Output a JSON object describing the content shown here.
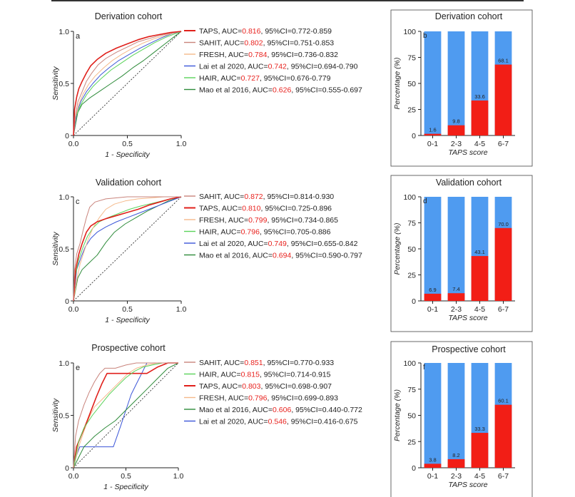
{
  "colors": {
    "auc_value": "#e8231f",
    "bar_top": "#4f9bf0",
    "bar_bottom": "#f21e16",
    "text": "#222222"
  },
  "chart_data": [
    {
      "type": "line",
      "panel": "a",
      "title": "Derivation cohort",
      "xlabel": "1 - Specificity",
      "ylabel": "Sensitivity",
      "xlim": [
        0,
        1
      ],
      "ylim": [
        0,
        1
      ],
      "xticks": [
        "0.0",
        "0.5",
        "1.0"
      ],
      "yticks": [
        "0",
        "0.5",
        "1.0"
      ],
      "legend_position": "right",
      "reference_line": true,
      "series": [
        {
          "name": "TAPS",
          "auc": "0.816",
          "ci": "0.772-0.859",
          "color": "#e0201b",
          "width": 1.6,
          "x": [
            0,
            0.01,
            0.03,
            0.05,
            0.08,
            0.12,
            0.16,
            0.22,
            0.3,
            0.4,
            0.5,
            0.6,
            0.7,
            0.8,
            0.9,
            1
          ],
          "y": [
            0,
            0.25,
            0.37,
            0.45,
            0.52,
            0.6,
            0.67,
            0.73,
            0.79,
            0.84,
            0.88,
            0.92,
            0.95,
            0.97,
            0.99,
            1
          ]
        },
        {
          "name": "SAHIT",
          "auc": "0.802",
          "ci": "0.751-0.853",
          "color": "#c9847c",
          "width": 1,
          "x": [
            0,
            0.02,
            0.04,
            0.08,
            0.12,
            0.17,
            0.23,
            0.3,
            0.4,
            0.5,
            0.6,
            0.7,
            0.8,
            0.9,
            1
          ],
          "y": [
            0,
            0.2,
            0.32,
            0.42,
            0.52,
            0.6,
            0.68,
            0.74,
            0.8,
            0.85,
            0.9,
            0.93,
            0.96,
            0.98,
            1
          ]
        },
        {
          "name": "FRESH",
          "auc": "0.784",
          "ci": "0.736-0.832",
          "color": "#f5b98a",
          "width": 1,
          "x": [
            0,
            0.02,
            0.05,
            0.09,
            0.14,
            0.2,
            0.28,
            0.36,
            0.45,
            0.55,
            0.65,
            0.75,
            0.85,
            0.95,
            1
          ],
          "y": [
            0,
            0.18,
            0.3,
            0.4,
            0.49,
            0.57,
            0.65,
            0.72,
            0.78,
            0.84,
            0.89,
            0.93,
            0.96,
            0.99,
            1
          ]
        },
        {
          "name": "Lai et al 2020",
          "auc": "0.742",
          "ci": "0.694-0.790",
          "color": "#3b56d8",
          "width": 1,
          "x": [
            0,
            0.03,
            0.07,
            0.12,
            0.18,
            0.25,
            0.33,
            0.42,
            0.52,
            0.62,
            0.72,
            0.82,
            0.92,
            1
          ],
          "y": [
            0,
            0.22,
            0.33,
            0.42,
            0.5,
            0.58,
            0.65,
            0.72,
            0.78,
            0.84,
            0.89,
            0.94,
            0.98,
            1
          ]
        },
        {
          "name": "HAIR",
          "auc": "0.727",
          "ci": "0.676-0.779",
          "color": "#5ad35a",
          "width": 1,
          "x": [
            0,
            0.03,
            0.07,
            0.12,
            0.18,
            0.26,
            0.35,
            0.45,
            0.55,
            0.65,
            0.75,
            0.85,
            0.95,
            1
          ],
          "y": [
            0,
            0.2,
            0.3,
            0.39,
            0.47,
            0.55,
            0.63,
            0.7,
            0.77,
            0.83,
            0.89,
            0.94,
            0.98,
            1
          ]
        },
        {
          "name": "Mao et al 2016",
          "auc": "0.626",
          "ci": "0.555-0.697",
          "color": "#2e8b3a",
          "width": 1,
          "x": [
            0,
            0.04,
            0.08,
            0.15,
            0.25,
            0.35,
            0.45,
            0.55,
            0.65,
            0.75,
            0.85,
            0.95,
            1
          ],
          "y": [
            0,
            0.22,
            0.3,
            0.36,
            0.43,
            0.5,
            0.57,
            0.65,
            0.72,
            0.8,
            0.88,
            0.96,
            1
          ]
        }
      ]
    },
    {
      "type": "bar",
      "panel": "b",
      "title": "Derivation cohort",
      "xlabel": "TAPS score",
      "ylabel": "Percentage (%)",
      "ylim": [
        0,
        100
      ],
      "yticks": [
        "0",
        "25",
        "50",
        "75",
        "100"
      ],
      "categories": [
        "0-1",
        "2-3",
        "4-5",
        "6-7"
      ],
      "values": [
        1.6,
        9.8,
        33.6,
        68.1
      ],
      "labels": [
        "1.6",
        "9.8",
        "33.6",
        "68.1"
      ]
    },
    {
      "type": "line",
      "panel": "c",
      "title": "Validation cohort",
      "xlabel": "1 - Specificity",
      "ylabel": "Sensitivity",
      "xlim": [
        0,
        1
      ],
      "ylim": [
        0,
        1
      ],
      "xticks": [
        "0.0",
        "0.5",
        "1.0"
      ],
      "yticks": [
        "0",
        "0.5",
        "1.0"
      ],
      "legend_position": "right",
      "reference_line": true,
      "series": [
        {
          "name": "SAHIT",
          "auc": "0.872",
          "ci": "0.814-0.930",
          "color": "#c9847c",
          "width": 1,
          "x": [
            0,
            0.01,
            0.03,
            0.06,
            0.09,
            0.12,
            0.15,
            0.2,
            0.3,
            0.5,
            0.7,
            1
          ],
          "y": [
            0,
            0.3,
            0.45,
            0.55,
            0.68,
            0.8,
            0.9,
            0.95,
            0.98,
            1,
            1,
            1
          ]
        },
        {
          "name": "TAPS",
          "auc": "0.810",
          "ci": "0.725-0.896",
          "color": "#e0201b",
          "width": 1.6,
          "x": [
            0,
            0.02,
            0.05,
            0.08,
            0.12,
            0.16,
            0.22,
            0.3,
            0.4,
            0.5,
            0.6,
            0.7,
            0.8,
            0.9,
            1
          ],
          "y": [
            0,
            0.3,
            0.45,
            0.55,
            0.66,
            0.72,
            0.76,
            0.79,
            0.82,
            0.85,
            0.88,
            0.92,
            0.95,
            0.98,
            1
          ]
        },
        {
          "name": "FRESH",
          "auc": "0.799",
          "ci": "0.734-0.865",
          "color": "#f5b98a",
          "width": 1,
          "x": [
            0,
            0.03,
            0.06,
            0.1,
            0.14,
            0.18,
            0.24,
            0.3,
            0.38,
            0.48,
            0.6,
            0.72,
            0.84,
            1
          ],
          "y": [
            0,
            0.2,
            0.35,
            0.48,
            0.6,
            0.7,
            0.8,
            0.88,
            0.93,
            0.96,
            0.98,
            0.99,
            1,
            1
          ]
        },
        {
          "name": "HAIR",
          "auc": "0.796",
          "ci": "0.705-0.886",
          "color": "#5ad35a",
          "width": 1,
          "x": [
            0,
            0.02,
            0.05,
            0.09,
            0.13,
            0.18,
            0.24,
            0.32,
            0.42,
            0.52,
            0.62,
            0.74,
            0.86,
            1
          ],
          "y": [
            0,
            0.25,
            0.4,
            0.52,
            0.62,
            0.7,
            0.76,
            0.8,
            0.84,
            0.88,
            0.91,
            0.94,
            0.97,
            1
          ]
        },
        {
          "name": "Lai et al 2020",
          "auc": "0.749",
          "ci": "0.655-0.842",
          "color": "#3b56d8",
          "width": 1,
          "x": [
            0,
            0.03,
            0.07,
            0.11,
            0.16,
            0.22,
            0.3,
            0.4,
            0.5,
            0.6,
            0.7,
            0.8,
            0.9,
            1
          ],
          "y": [
            0,
            0.3,
            0.42,
            0.52,
            0.6,
            0.66,
            0.71,
            0.76,
            0.8,
            0.84,
            0.88,
            0.92,
            0.96,
            1
          ]
        },
        {
          "name": "Mao et al 2016",
          "auc": "0.694",
          "ci": "0.590-0.797",
          "color": "#2e8b3a",
          "width": 1,
          "x": [
            0,
            0.04,
            0.08,
            0.14,
            0.22,
            0.3,
            0.38,
            0.48,
            0.58,
            0.68,
            0.78,
            0.88,
            1
          ],
          "y": [
            0,
            0.22,
            0.3,
            0.36,
            0.44,
            0.56,
            0.66,
            0.74,
            0.8,
            0.86,
            0.91,
            0.96,
            1
          ]
        }
      ]
    },
    {
      "type": "bar",
      "panel": "d",
      "title": "Validation cohort",
      "xlabel": "TAPS score",
      "ylabel": "Percentage (%)",
      "ylim": [
        0,
        100
      ],
      "yticks": [
        "0",
        "25",
        "50",
        "75",
        "100"
      ],
      "categories": [
        "0-1",
        "2-3",
        "4-5",
        "6-7"
      ],
      "values": [
        6.9,
        7.4,
        43.1,
        70.0
      ],
      "labels": [
        "6.9",
        "7.4",
        "43.1",
        "70.0"
      ]
    },
    {
      "type": "line",
      "panel": "e",
      "title": "Prospective cohort",
      "xlabel": "1 - Specificity",
      "ylabel": "Sensitivity",
      "xlim": [
        0,
        1
      ],
      "ylim": [
        0,
        1
      ],
      "xticks": [
        "0.0",
        "0.5",
        "1.0"
      ],
      "yticks": [
        "0",
        "0.5",
        "1.0"
      ],
      "legend_position": "right",
      "reference_line": true,
      "series": [
        {
          "name": "SAHIT",
          "auc": "0.851",
          "ci": "0.770-0.933",
          "color": "#c9847c",
          "width": 1,
          "x": [
            0,
            0.02,
            0.05,
            0.1,
            0.15,
            0.2,
            0.25,
            0.3,
            0.4,
            0.5,
            0.6,
            0.7,
            1
          ],
          "y": [
            0,
            0.3,
            0.45,
            0.6,
            0.72,
            0.82,
            0.9,
            0.95,
            0.95,
            0.98,
            1,
            1,
            1
          ]
        },
        {
          "name": "HAIR",
          "auc": "0.815",
          "ci": "0.714-0.915",
          "color": "#5ad35a",
          "width": 1,
          "x": [
            0,
            0.05,
            0.1,
            0.18,
            0.26,
            0.34,
            0.42,
            0.5,
            0.58,
            0.66,
            0.75,
            0.85,
            1
          ],
          "y": [
            0,
            0.25,
            0.38,
            0.5,
            0.6,
            0.7,
            0.78,
            0.86,
            0.92,
            0.96,
            0.98,
            1,
            1
          ]
        },
        {
          "name": "TAPS",
          "auc": "0.803",
          "ci": "0.698-0.907",
          "color": "#e0201b",
          "width": 1.6,
          "x": [
            0,
            0.03,
            0.07,
            0.12,
            0.17,
            0.22,
            0.27,
            0.32,
            0.5,
            0.7,
            0.8,
            0.9,
            1
          ],
          "y": [
            0,
            0.2,
            0.3,
            0.42,
            0.55,
            0.68,
            0.8,
            0.9,
            0.9,
            0.9,
            0.96,
            1,
            1
          ]
        },
        {
          "name": "FRESH",
          "auc": "0.796",
          "ci": "0.699-0.893",
          "color": "#f5b98a",
          "width": 1,
          "x": [
            0,
            0.05,
            0.1,
            0.15,
            0.2,
            0.28,
            0.36,
            0.44,
            0.52,
            0.6,
            0.7,
            0.8,
            1
          ],
          "y": [
            0,
            0.2,
            0.35,
            0.48,
            0.58,
            0.66,
            0.74,
            0.82,
            0.9,
            0.95,
            0.98,
            1,
            1
          ]
        },
        {
          "name": "Mao et al 2016",
          "auc": "0.606",
          "ci": "0.440-0.772",
          "color": "#2e8b3a",
          "width": 1,
          "x": [
            0,
            0.1,
            0.2,
            0.3,
            0.4,
            0.5,
            0.6,
            0.7,
            0.8,
            0.9,
            1
          ],
          "y": [
            0,
            0.2,
            0.3,
            0.38,
            0.45,
            0.55,
            0.65,
            0.75,
            0.85,
            0.95,
            1
          ]
        },
        {
          "name": "Lai et al 2020",
          "auc": "0.546",
          "ci": "0.416-0.675",
          "color": "#3b56d8",
          "width": 1,
          "x": [
            0,
            0.03,
            0.06,
            0.1,
            0.2,
            0.3,
            0.38,
            0.45,
            0.5,
            0.55,
            0.6,
            0.65,
            0.7,
            1
          ],
          "y": [
            0,
            0.12,
            0.2,
            0.2,
            0.2,
            0.2,
            0.2,
            0.4,
            0.55,
            0.7,
            0.8,
            0.9,
            1,
            1
          ]
        }
      ]
    },
    {
      "type": "bar",
      "panel": "f",
      "title": "Prospective cohort",
      "xlabel": "TAPS score",
      "ylabel": "Percentage (%)",
      "ylim": [
        0,
        100
      ],
      "yticks": [
        "0",
        "25",
        "50",
        "75",
        "100"
      ],
      "categories": [
        "0-1",
        "2-3",
        "4-5",
        "6-7"
      ],
      "values": [
        3.8,
        8.2,
        33.3,
        60.1
      ],
      "labels": [
        "3.8",
        "8.2",
        "33.3",
        "60.1"
      ]
    }
  ]
}
